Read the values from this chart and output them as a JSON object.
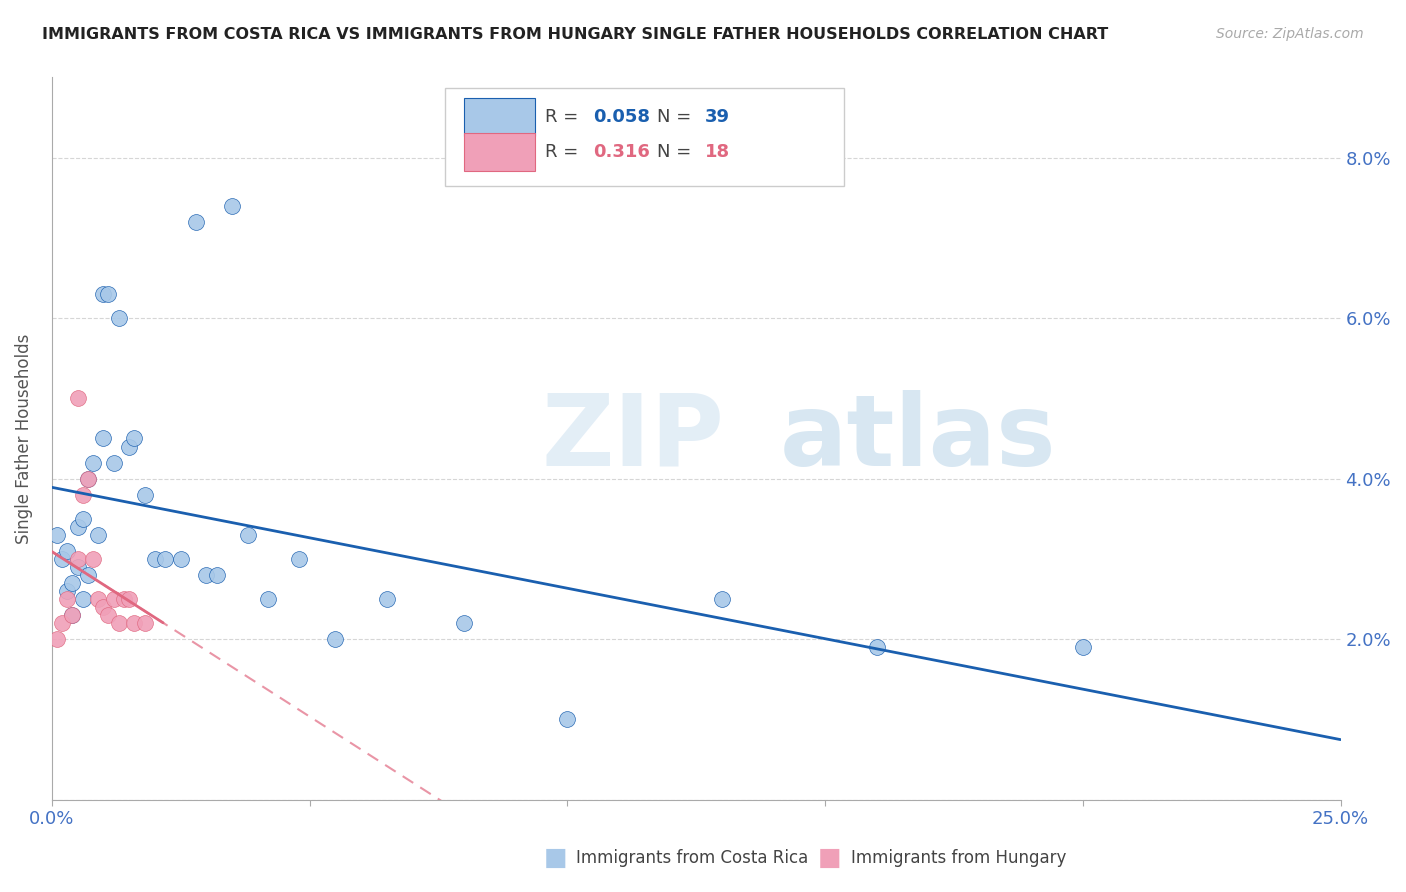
{
  "title": "IMMIGRANTS FROM COSTA RICA VS IMMIGRANTS FROM HUNGARY SINGLE FATHER HOUSEHOLDS CORRELATION CHART",
  "source": "Source: ZipAtlas.com",
  "ylabel": "Single Father Households",
  "xlim": [
    0.0,
    0.25
  ],
  "ylim": [
    0.0,
    0.09
  ],
  "xtick_positions": [
    0.0,
    0.05,
    0.1,
    0.15,
    0.2,
    0.25
  ],
  "xtick_labels": [
    "0.0%",
    "",
    "",
    "",
    "",
    "25.0%"
  ],
  "ytick_positions": [
    0.0,
    0.02,
    0.04,
    0.06,
    0.08
  ],
  "ytick_labels": [
    "",
    "2.0%",
    "4.0%",
    "6.0%",
    "8.0%"
  ],
  "costa_rica_R": 0.058,
  "costa_rica_N": 39,
  "hungary_R": 0.316,
  "hungary_N": 18,
  "costa_rica_color": "#a8c8e8",
  "hungary_color": "#f0a0b8",
  "trend_costa_rica_color": "#1a5faf",
  "trend_hungary_color": "#e06880",
  "costa_rica_x": [
    0.001,
    0.002,
    0.003,
    0.003,
    0.004,
    0.004,
    0.005,
    0.005,
    0.006,
    0.006,
    0.007,
    0.007,
    0.008,
    0.009,
    0.01,
    0.01,
    0.011,
    0.012,
    0.013,
    0.015,
    0.016,
    0.018,
    0.02,
    0.022,
    0.025,
    0.028,
    0.03,
    0.032,
    0.035,
    0.038,
    0.042,
    0.048,
    0.055,
    0.065,
    0.08,
    0.1,
    0.13,
    0.16,
    0.2
  ],
  "costa_rica_y": [
    0.033,
    0.03,
    0.031,
    0.026,
    0.027,
    0.023,
    0.034,
    0.029,
    0.035,
    0.025,
    0.04,
    0.028,
    0.042,
    0.033,
    0.045,
    0.063,
    0.063,
    0.042,
    0.06,
    0.044,
    0.045,
    0.038,
    0.03,
    0.03,
    0.03,
    0.072,
    0.028,
    0.028,
    0.074,
    0.033,
    0.025,
    0.03,
    0.02,
    0.025,
    0.022,
    0.01,
    0.025,
    0.019,
    0.019
  ],
  "hungary_x": [
    0.001,
    0.002,
    0.003,
    0.004,
    0.005,
    0.005,
    0.006,
    0.007,
    0.008,
    0.009,
    0.01,
    0.011,
    0.012,
    0.013,
    0.014,
    0.015,
    0.016,
    0.018
  ],
  "hungary_y": [
    0.02,
    0.022,
    0.025,
    0.023,
    0.05,
    0.03,
    0.038,
    0.04,
    0.03,
    0.025,
    0.024,
    0.023,
    0.025,
    0.022,
    0.025,
    0.025,
    0.022,
    0.022
  ]
}
